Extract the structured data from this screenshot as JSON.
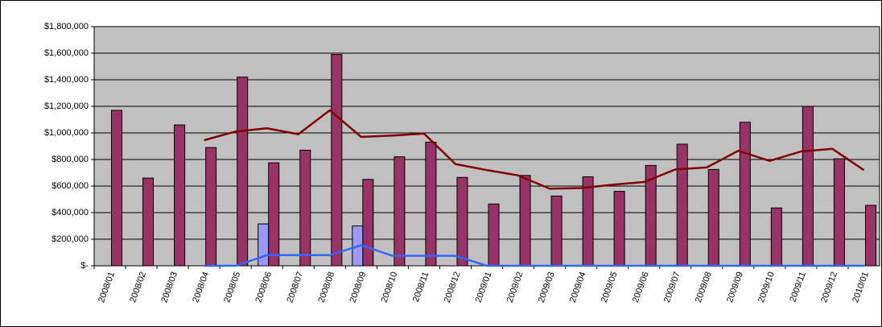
{
  "chart_data": {
    "type": "bar",
    "categories": [
      "2008/01",
      "2008/02",
      "2008/03",
      "2008/04",
      "2008/05",
      "2008/06",
      "2008/07",
      "2008/08",
      "2008/09",
      "2008/10",
      "2008/11",
      "2008/12",
      "2009/01",
      "2009/02",
      "2009/03",
      "2009/04",
      "2009/05",
      "2009/06",
      "2009/07",
      "2009/08",
      "2009/09",
      "2009/10",
      "2009/11",
      "2009/12",
      "2010/01"
    ],
    "series": [
      {
        "type": "bar",
        "color": "#9999ff",
        "values": [
          null,
          null,
          null,
          null,
          null,
          315000,
          null,
          null,
          300000,
          null,
          null,
          null,
          null,
          null,
          null,
          null,
          null,
          null,
          null,
          null,
          null,
          null,
          null,
          null,
          null
        ]
      },
      {
        "type": "bar",
        "color": "#993366",
        "values": [
          1170000,
          660000,
          1060000,
          890000,
          1420000,
          775000,
          870000,
          1590000,
          650000,
          820000,
          930000,
          665000,
          465000,
          680000,
          525000,
          670000,
          560000,
          755000,
          915000,
          725000,
          1080000,
          435000,
          1200000,
          805000,
          455000
        ]
      },
      {
        "type": "line",
        "color": "#800000",
        "values": [
          null,
          null,
          null,
          945000,
          1010000,
          1035000,
          990000,
          1170000,
          970000,
          980000,
          995000,
          765000,
          720000,
          680000,
          580000,
          585000,
          610000,
          630000,
          725000,
          740000,
          865000,
          790000,
          860000,
          880000,
          720000
        ]
      },
      {
        "type": "line",
        "color": "#3366ff",
        "values": [
          null,
          null,
          null,
          0,
          0,
          80000,
          80000,
          80000,
          155000,
          75000,
          75000,
          75000,
          0,
          0,
          0,
          0,
          0,
          0,
          0,
          0,
          0,
          0,
          0,
          0,
          0
        ]
      }
    ],
    "ylim": [
      0,
      1800000
    ],
    "yticks": [
      {
        "value": 0,
        "label": "$-"
      },
      {
        "value": 200000,
        "label": "$200,000"
      },
      {
        "value": 400000,
        "label": "$400,000"
      },
      {
        "value": 600000,
        "label": "$600,000"
      },
      {
        "value": 800000,
        "label": "$800,000"
      },
      {
        "value": 1000000,
        "label": "$1,000,000"
      },
      {
        "value": 1200000,
        "label": "$1,200,000"
      },
      {
        "value": 1400000,
        "label": "$1,400,000"
      },
      {
        "value": 1600000,
        "label": "$1,600,000"
      },
      {
        "value": 1800000,
        "label": "$1,800,000"
      }
    ],
    "grid": true
  }
}
